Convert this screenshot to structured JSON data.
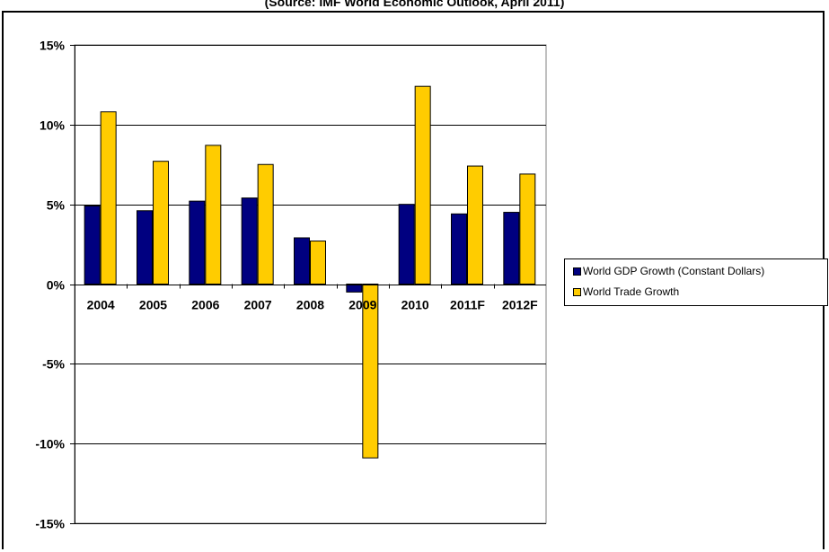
{
  "header": {
    "subtitle": "(Source: IMF World Economic Outlook, April 2011)"
  },
  "chart_data": {
    "type": "bar",
    "title": "",
    "subtitle": "(Source: IMF World Economic Outlook, April 2011)",
    "xlabel": "",
    "ylabel": "",
    "categories": [
      "2004",
      "2005",
      "2006",
      "2007",
      "2008",
      "2009",
      "2010",
      "2011F",
      "2012F"
    ],
    "series": [
      {
        "name": "World GDP Growth (Constant Dollars)",
        "color": "#000080",
        "values": [
          4.9,
          4.6,
          5.2,
          5.4,
          2.9,
          -0.5,
          5.0,
          4.4,
          4.5
        ]
      },
      {
        "name": "World Trade Growth",
        "color": "#FFCC00",
        "values": [
          10.8,
          7.7,
          8.7,
          7.5,
          2.7,
          -10.9,
          12.4,
          7.4,
          6.9
        ]
      }
    ],
    "ylim": [
      -15,
      15
    ],
    "yticks": [
      15,
      10,
      5,
      0,
      -5,
      -10,
      -15
    ],
    "ytick_labels": [
      "15%",
      "10%",
      "5%",
      "0%",
      "-5%",
      "-10%",
      "-15%"
    ],
    "grid": true,
    "legend": "right"
  }
}
